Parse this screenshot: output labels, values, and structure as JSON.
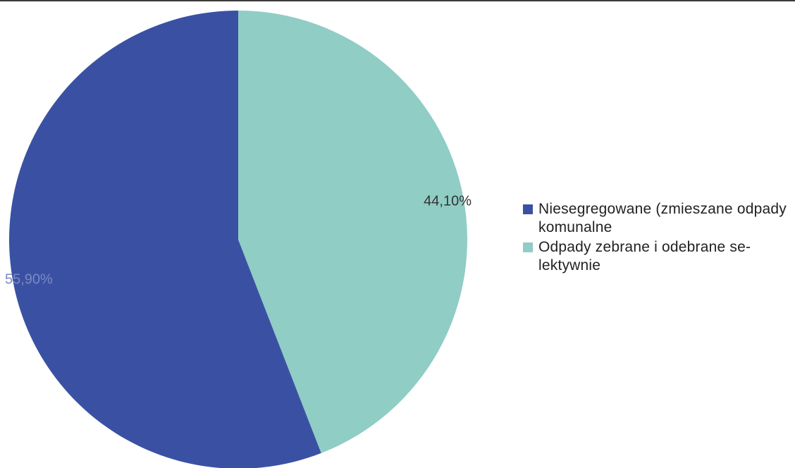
{
  "chart_data": {
    "type": "pie",
    "title": "",
    "start_angle_deg": 0,
    "direction": "clockwise",
    "legend_position": "right",
    "labels_shown": "percent",
    "slices": [
      {
        "label": "Odpady zebrane i odebrane selektywnie",
        "value": 44.1,
        "display": "44,10%",
        "color": "#8fcdc5",
        "label_color": "#333333"
      },
      {
        "label": "Niesegregowane (zmieszane odpady komunalne",
        "value": 55.9,
        "display": "55,90%",
        "color": "#3a51a3",
        "label_color": "#7b89c4"
      }
    ],
    "legend": [
      {
        "text": "Niesegregowane (zmieszane odpady komunalne",
        "color": "#3a51a3"
      },
      {
        "text": "Odpady zebrane i odebrane se-lektywnie",
        "color": "#8fcdc5"
      }
    ]
  }
}
